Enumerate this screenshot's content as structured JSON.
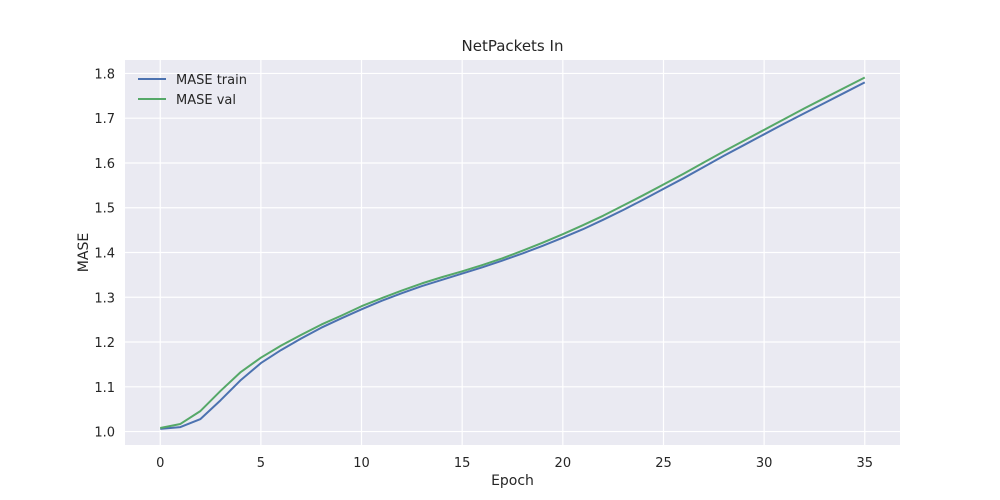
{
  "chart_data": {
    "type": "line",
    "title": "NetPackets In",
    "xlabel": "Epoch",
    "ylabel": "MASE",
    "xlim": [
      -1.75,
      36.75
    ],
    "ylim": [
      0.97,
      1.83
    ],
    "xticks": [
      0,
      5,
      10,
      15,
      20,
      25,
      30,
      35
    ],
    "yticks": [
      1.0,
      1.1,
      1.2,
      1.3,
      1.4,
      1.5,
      1.6,
      1.7,
      1.8
    ],
    "grid": true,
    "legend_position": "top-left",
    "x": [
      0,
      1,
      2,
      3,
      4,
      5,
      6,
      7,
      8,
      9,
      10,
      11,
      12,
      13,
      14,
      15,
      16,
      17,
      18,
      19,
      20,
      21,
      22,
      23,
      24,
      25,
      26,
      27,
      28,
      29,
      30,
      31,
      32,
      33,
      34,
      35
    ],
    "series": [
      {
        "name": "MASE train",
        "color": "#4c72b0",
        "values": [
          1.006,
          1.01,
          1.028,
          1.07,
          1.115,
          1.153,
          1.182,
          1.208,
          1.232,
          1.253,
          1.273,
          1.292,
          1.309,
          1.325,
          1.339,
          1.353,
          1.367,
          1.382,
          1.398,
          1.415,
          1.433,
          1.452,
          1.473,
          1.495,
          1.518,
          1.542,
          1.566,
          1.591,
          1.616,
          1.64,
          1.664,
          1.688,
          1.711,
          1.734,
          1.757,
          1.78
        ]
      },
      {
        "name": "MASE val",
        "color": "#55a868",
        "values": [
          1.008,
          1.017,
          1.046,
          1.091,
          1.133,
          1.165,
          1.192,
          1.216,
          1.239,
          1.259,
          1.28,
          1.298,
          1.315,
          1.331,
          1.345,
          1.358,
          1.372,
          1.387,
          1.404,
          1.422,
          1.441,
          1.461,
          1.482,
          1.505,
          1.528,
          1.552,
          1.576,
          1.601,
          1.626,
          1.65,
          1.674,
          1.698,
          1.722,
          1.745,
          1.768,
          1.791
        ]
      }
    ]
  }
}
